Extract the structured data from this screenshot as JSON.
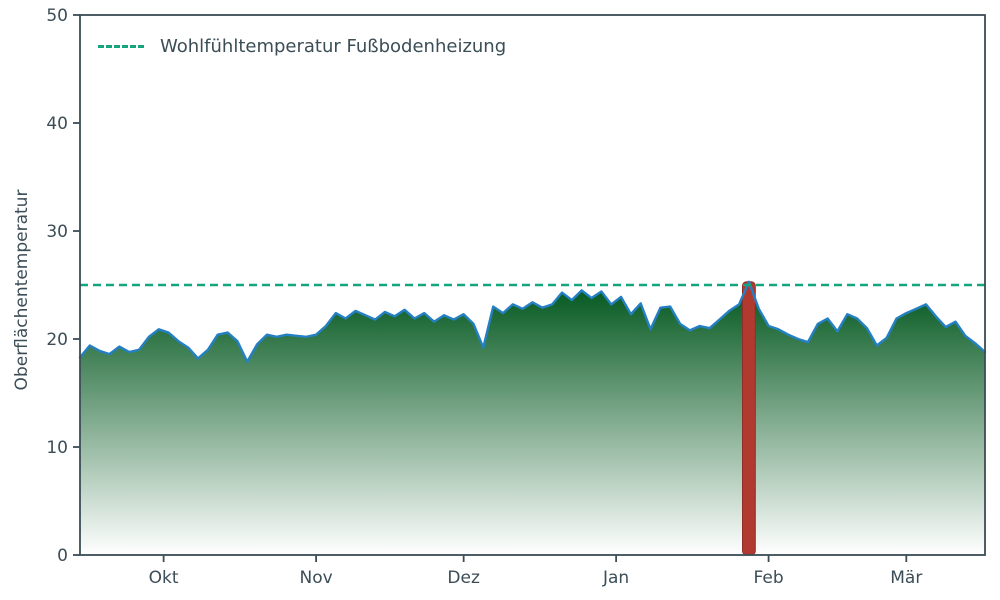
{
  "chart_data": {
    "type": "area",
    "title": "",
    "xlabel": "",
    "ylabel": "Oberflächentemperatur",
    "ylim": [
      0,
      50
    ],
    "yticks": [
      0,
      10,
      20,
      30,
      40,
      50
    ],
    "x_domain_days": [
      0,
      184
    ],
    "xticks": [
      {
        "day": 17,
        "label": "Okt"
      },
      {
        "day": 48,
        "label": "Nov"
      },
      {
        "day": 78,
        "label": "Dez"
      },
      {
        "day": 109,
        "label": "Jan"
      },
      {
        "day": 140,
        "label": "Feb"
      },
      {
        "day": 168,
        "label": "Mär"
      }
    ],
    "series": [
      {
        "name": "Oberflächentemperatur",
        "x_start_day": 0,
        "x_step_days": 2,
        "line_color": "#2580c3",
        "fill_gradient_top": "#0b5d26",
        "fill_gradient_bottom": "#ffffff",
        "values": [
          18.3,
          19.4,
          18.9,
          18.6,
          19.3,
          18.8,
          19.0,
          20.2,
          20.9,
          20.6,
          19.8,
          19.2,
          18.2,
          19.0,
          20.4,
          20.6,
          19.8,
          17.9,
          19.5,
          20.4,
          20.2,
          20.4,
          20.3,
          20.2,
          20.4,
          21.2,
          22.4,
          21.9,
          22.6,
          22.2,
          21.8,
          22.5,
          22.1,
          22.7,
          21.9,
          22.4,
          21.6,
          22.2,
          21.8,
          22.3,
          21.4,
          19.2,
          23.0,
          22.4,
          23.2,
          22.8,
          23.4,
          22.9,
          23.2,
          24.3,
          23.6,
          24.5,
          23.8,
          24.4,
          23.2,
          23.9,
          22.3,
          23.3,
          20.9,
          22.9,
          23.0,
          21.4,
          20.8,
          21.2,
          21.0,
          21.8,
          22.6,
          23.2,
          25.3,
          22.8,
          21.2,
          20.9,
          20.4,
          20.0,
          19.7,
          21.4,
          21.9,
          20.7,
          22.3,
          21.9,
          21.0,
          19.4,
          20.1,
          21.9,
          22.4,
          22.8,
          23.2,
          22.1,
          21.1,
          21.6,
          20.3,
          19.6,
          18.8
        ]
      }
    ],
    "reference_line": {
      "label": "Wohlfühltemperatur Fußbodenheizung",
      "value": 25,
      "color": "#12a57e",
      "style": "dashed"
    },
    "highlight_bar": {
      "day": 136,
      "value": 25.3,
      "width_days": 2.6,
      "color": "#b03a30",
      "edge_color": "#8f2d26"
    },
    "legend": {
      "position": "upper-left",
      "frame": false,
      "entries": [
        {
          "label": "Wohlfühltemperatur Fußbodenheizung",
          "color": "#12a57e",
          "style": "dashed"
        }
      ]
    },
    "axis_color": "#3b4d56",
    "background": "#ffffff",
    "grid": false
  }
}
